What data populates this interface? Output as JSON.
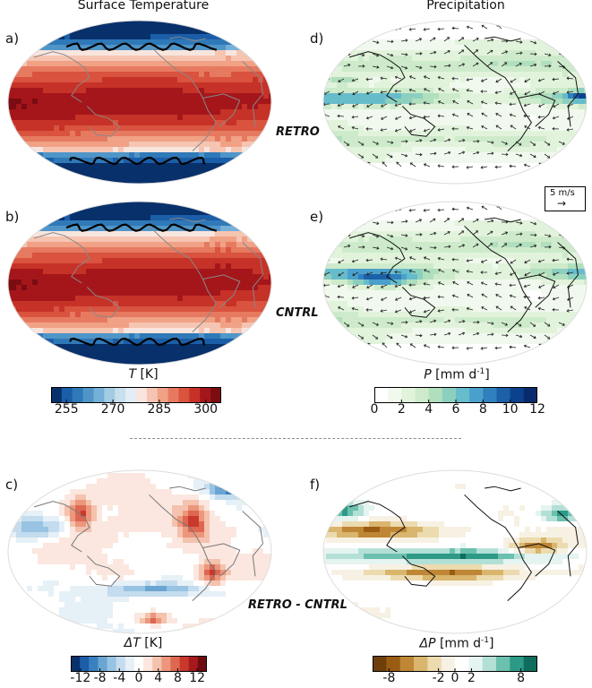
{
  "columns": {
    "left_title": "Surface Temperature",
    "right_title": "Precipitation"
  },
  "panels": {
    "a": "a)",
    "b": "b)",
    "c": "c)",
    "d": "d)",
    "e": "e)",
    "f": "f)"
  },
  "runs": {
    "retro": "RETRO",
    "cntrl": "CNTRL",
    "diff": "RETRO - CNTRL"
  },
  "wind_legend": {
    "label": "5 m/s",
    "arrow": "→"
  },
  "colorbars": {
    "T": {
      "var": "T",
      "unit": " [K]",
      "ticks": [
        "255",
        "270",
        "285",
        "300"
      ],
      "tick_values": [
        255,
        270,
        285,
        300
      ],
      "range": [
        250,
        305
      ],
      "colors": [
        "#08306b",
        "#1b5ea8",
        "#2f79b8",
        "#4f95c8",
        "#75b0d8",
        "#a2cbe4",
        "#c8dfee",
        "#e2edf5",
        "#f8e5de",
        "#f6c5b2",
        "#f0a186",
        "#e67a60",
        "#d9533f",
        "#c63227",
        "#a5161b",
        "#7a0c12"
      ]
    },
    "P": {
      "var": "P",
      "unit": " [mm d",
      "unit_sup": "-1",
      "unit_end": "]",
      "ticks": [
        "0",
        "2",
        "4",
        "6",
        "8",
        "10",
        "12"
      ],
      "tick_values": [
        0,
        2,
        4,
        6,
        8,
        10,
        12
      ],
      "range": [
        0,
        12
      ],
      "colors": [
        "#ffffff",
        "#f1f9ee",
        "#e2f3dc",
        "#cdebcb",
        "#b0dfbd",
        "#8ccfbf",
        "#67bccb",
        "#4aa0cc",
        "#2f80bd",
        "#1c60a8",
        "#0c428d",
        "#082c6b"
      ]
    },
    "dT": {
      "var": "ΔT",
      "unit": " [K]",
      "ticks": [
        "-12",
        "-8",
        "-4",
        "0",
        "4",
        "8",
        "12"
      ],
      "tick_values": [
        -12,
        -8,
        -4,
        0,
        4,
        8,
        12
      ],
      "range": [
        -14,
        14
      ],
      "colors": [
        "#08306b",
        "#1c5ca8",
        "#3a7fbf",
        "#6aa5d3",
        "#98c3e2",
        "#c3dcee",
        "#e6f0f7",
        "#ffffff",
        "#fbe7df",
        "#f4c2ad",
        "#ec977c",
        "#dd6751",
        "#c9392b",
        "#a61a1d",
        "#6e0b10"
      ]
    },
    "dP": {
      "var": "ΔP",
      "unit": " [mm d",
      "unit_sup": "-1",
      "unit_end": "]",
      "ticks": [
        "-8",
        "-2",
        "0",
        "2",
        "8"
      ],
      "tick_values": [
        -8,
        -2,
        0,
        2,
        8
      ],
      "range": [
        -10,
        10
      ],
      "colors": [
        "#6f3f0b",
        "#9a5b13",
        "#bf8636",
        "#d9b56d",
        "#ecdbaf",
        "#f7f1e4",
        "#ffffff",
        "#e5f4f1",
        "#b3e0d6",
        "#6bc0ae",
        "#2c9a86",
        "#0f6d5d"
      ]
    }
  },
  "chart_data": [
    {
      "type": "heatmap",
      "title": "Surface Temperature",
      "panel": "a)",
      "run": "RETRO",
      "variable": "T [K]",
      "colorbar_range": [
        250,
        305
      ],
      "colorbar_ticks": [
        255,
        270,
        285,
        300
      ]
    },
    {
      "type": "heatmap",
      "title": "Precipitation",
      "panel": "d)",
      "run": "RETRO",
      "variable": "P [mm d-1]",
      "colorbar_range": [
        0,
        12
      ],
      "colorbar_ticks": [
        0,
        2,
        4,
        6,
        8,
        10,
        12
      ],
      "wind_reference": "5 m/s"
    },
    {
      "type": "heatmap",
      "title": "Surface Temperature",
      "panel": "b)",
      "run": "CNTRL",
      "variable": "T [K]",
      "colorbar_range": [
        250,
        305
      ],
      "colorbar_ticks": [
        255,
        270,
        285,
        300
      ]
    },
    {
      "type": "heatmap",
      "title": "Precipitation",
      "panel": "e)",
      "run": "CNTRL",
      "variable": "P [mm d-1]",
      "colorbar_range": [
        0,
        12
      ],
      "colorbar_ticks": [
        0,
        2,
        4,
        6,
        8,
        10,
        12
      ]
    },
    {
      "type": "heatmap",
      "panel": "c)",
      "run": "RETRO - CNTRL",
      "variable": "ΔT [K]",
      "colorbar_range": [
        -14,
        14
      ],
      "colorbar_ticks": [
        -12,
        -8,
        -4,
        0,
        4,
        8,
        12
      ]
    },
    {
      "type": "heatmap",
      "panel": "f)",
      "run": "RETRO - CNTRL",
      "variable": "ΔP [mm d-1]",
      "colorbar_range": [
        -10,
        10
      ],
      "colorbar_ticks": [
        -8,
        -2,
        0,
        2,
        8
      ]
    }
  ]
}
